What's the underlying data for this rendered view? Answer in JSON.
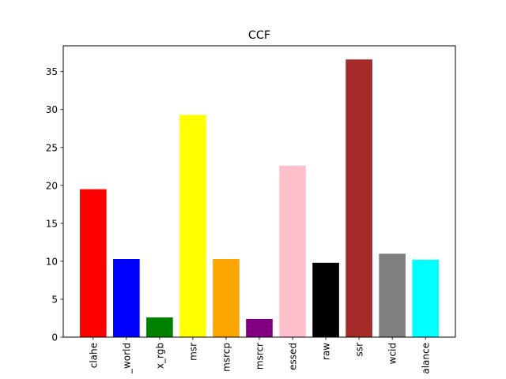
{
  "chart_data": {
    "type": "bar",
    "title": "CCF",
    "xlabel": "",
    "ylabel": "",
    "categories": [
      "clahe",
      "_world",
      "x_rgb",
      "msr",
      "msrcp",
      "msrcr",
      "essed",
      "raw",
      "ssr",
      "wcid",
      "alance"
    ],
    "values": [
      19.5,
      10.3,
      2.6,
      29.3,
      10.3,
      2.4,
      22.6,
      9.8,
      36.6,
      11.0,
      10.2
    ],
    "colors": [
      "#ff0000",
      "#0000ff",
      "#008000",
      "#ffff00",
      "#ffa500",
      "#800080",
      "#ffc0cb",
      "#000000",
      "#a52a2a",
      "#808080",
      "#00ffff"
    ],
    "ylim": [
      0,
      38.4
    ],
    "yticks": [
      0,
      5,
      10,
      15,
      20,
      25,
      30,
      35
    ],
    "grid": false,
    "legend": "none"
  }
}
